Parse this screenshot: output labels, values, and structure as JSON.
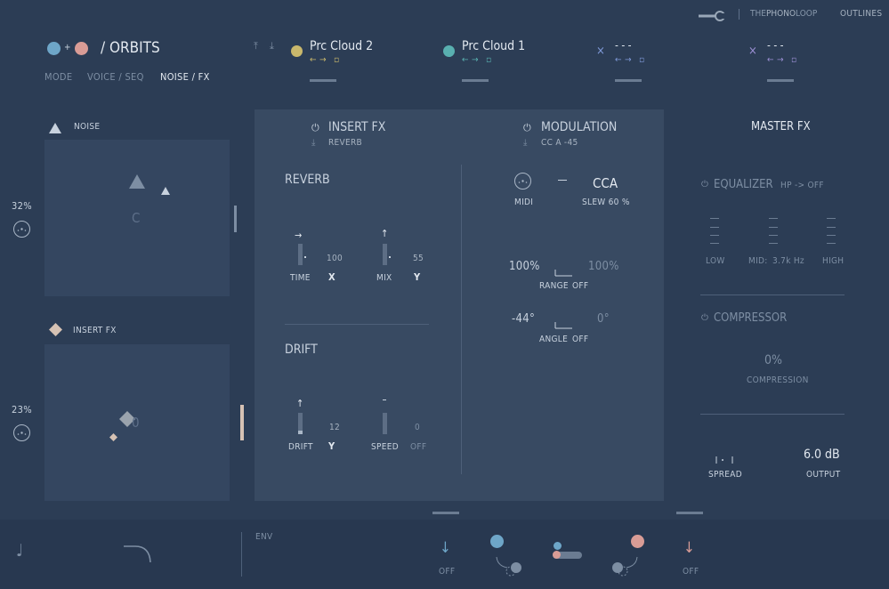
{
  "brand": {
    "name_light": "THE",
    "name_mid": "PHONO",
    "name_end": "LOOP",
    "suffix": "OUTLINES"
  },
  "header": {
    "plus": "+",
    "title": "/ ORBITS",
    "tabs": [
      "MODE",
      "VOICE / SEQ",
      "NOISE / FX"
    ],
    "active_tab": 2
  },
  "tracks": [
    {
      "name": "Prc Cloud 2",
      "color": "#c9b86c",
      "arrows": "← →",
      "box": "▫"
    },
    {
      "name": "Prc Cloud 1",
      "color": "#59b0b0",
      "arrows": "← →",
      "box": "▫"
    },
    {
      "name": "- - -",
      "x": "×",
      "color": "#7f99d8",
      "arrows": "← →",
      "box": "▫"
    },
    {
      "name": "- - -",
      "x": "×",
      "color": "#9b8fd4",
      "arrows": "← →",
      "box": "▫"
    }
  ],
  "left": {
    "noise": {
      "label": "NOISE",
      "percent": "32%",
      "note": "C"
    },
    "insert": {
      "label": "INSERT FX",
      "percent": "23%",
      "note": "0"
    }
  },
  "center": {
    "insert_fx": {
      "title": "INSERT FX",
      "sub": "REVERB"
    },
    "modulation": {
      "title": "MODULATION",
      "sub": "CC A -45"
    },
    "reverb": {
      "title": "REVERB",
      "time": {
        "label": "TIME",
        "value": "100",
        "axis": "X"
      },
      "mix": {
        "label": "MIX",
        "value": "55",
        "axis": "Y"
      }
    },
    "drift": {
      "title": "DRIFT",
      "drift": {
        "label": "DRIFT",
        "value": "12",
        "axis": "Y"
      },
      "speed": {
        "label": "SPEED",
        "value": "0",
        "axis": "OFF"
      }
    },
    "mod": {
      "midi": "MIDI",
      "cca": "CCA",
      "slew": "SLEW 60 %",
      "range_left": "100%",
      "range_right": "100%",
      "range_label": "RANGE",
      "range_state": "OFF",
      "angle_left": "-44°",
      "angle_right": "0°",
      "angle_label": "ANGLE",
      "angle_state": "OFF"
    }
  },
  "master": {
    "title": "MASTER FX",
    "equalizer": "EQUALIZER",
    "hp": "HP -> OFF",
    "low": "LOW",
    "mid": "MID:",
    "mid_freq": "3.7k Hz",
    "high": "HIGH",
    "compressor": "COMPRESSOR",
    "comp_value": "0%",
    "comp_label": "COMPRESSION",
    "spread": "SPREAD",
    "output_value": "6.0 dB",
    "output_label": "OUTPUT"
  },
  "bottom": {
    "env": "ENV",
    "off_left": "OFF",
    "off_right": "OFF"
  },
  "colors": {
    "blue_orb": "#6ea6c8",
    "pink_orb": "#d99c96"
  }
}
